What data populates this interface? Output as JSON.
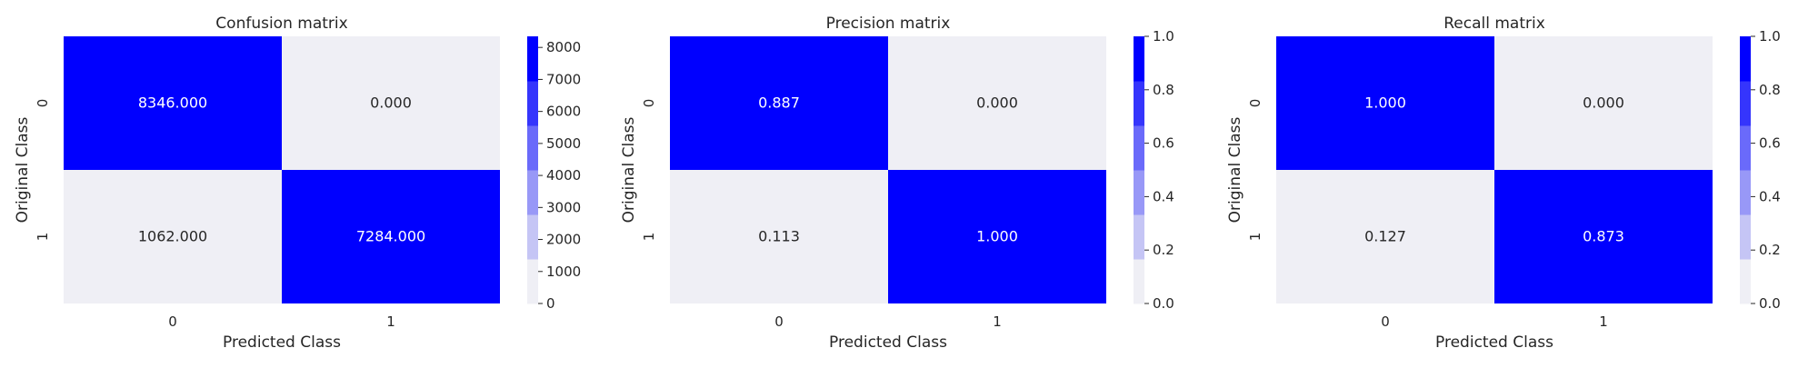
{
  "chart_data": [
    {
      "type": "heatmap",
      "title": "Confusion matrix",
      "xlabel": "Predicted Class",
      "ylabel": "Original Class",
      "x_ticks": [
        "0",
        "1"
      ],
      "y_ticks": [
        "0",
        "1"
      ],
      "values": [
        [
          8346.0,
          0.0
        ],
        [
          1062.0,
          7284.0
        ]
      ],
      "cell_labels": [
        [
          "8346.000",
          "0.000"
        ],
        [
          "1062.000",
          "7284.000"
        ]
      ],
      "colorbar": {
        "range": [
          0,
          8346
        ],
        "ticks": [
          "0",
          "1000",
          "2000",
          "3000",
          "4000",
          "5000",
          "6000",
          "7000",
          "8000"
        ],
        "tick_values": [
          0,
          1000,
          2000,
          3000,
          4000,
          5000,
          6000,
          7000,
          8000
        ]
      }
    },
    {
      "type": "heatmap",
      "title": "Precision matrix",
      "xlabel": "Predicted Class",
      "ylabel": "Original Class",
      "x_ticks": [
        "0",
        "1"
      ],
      "y_ticks": [
        "0",
        "1"
      ],
      "values": [
        [
          0.887,
          0.0
        ],
        [
          0.113,
          1.0
        ]
      ],
      "cell_labels": [
        [
          "0.887",
          "0.000"
        ],
        [
          "0.113",
          "1.000"
        ]
      ],
      "colorbar": {
        "range": [
          0,
          1
        ],
        "ticks": [
          "0.0",
          "0.2",
          "0.4",
          "0.6",
          "0.8",
          "1.0"
        ],
        "tick_values": [
          0,
          0.2,
          0.4,
          0.6,
          0.8,
          1.0
        ]
      }
    },
    {
      "type": "heatmap",
      "title": "Recall matrix",
      "xlabel": "Predicted Class",
      "ylabel": "Original Class",
      "x_ticks": [
        "0",
        "1"
      ],
      "y_ticks": [
        "0",
        "1"
      ],
      "values": [
        [
          1.0,
          0.0
        ],
        [
          0.127,
          0.873
        ]
      ],
      "cell_labels": [
        [
          "1.000",
          "0.000"
        ],
        [
          "0.127",
          "0.873"
        ]
      ],
      "colorbar": {
        "range": [
          0,
          1
        ],
        "ticks": [
          "0.0",
          "0.2",
          "0.4",
          "0.6",
          "0.8",
          "1.0"
        ],
        "tick_values": [
          0,
          0.2,
          0.4,
          0.6,
          0.8,
          1.0
        ]
      }
    }
  ],
  "colormap": [
    "#efeff5",
    "#c5c5f5",
    "#9898f7",
    "#6a6afa",
    "#3535fc",
    "#0000ff"
  ]
}
